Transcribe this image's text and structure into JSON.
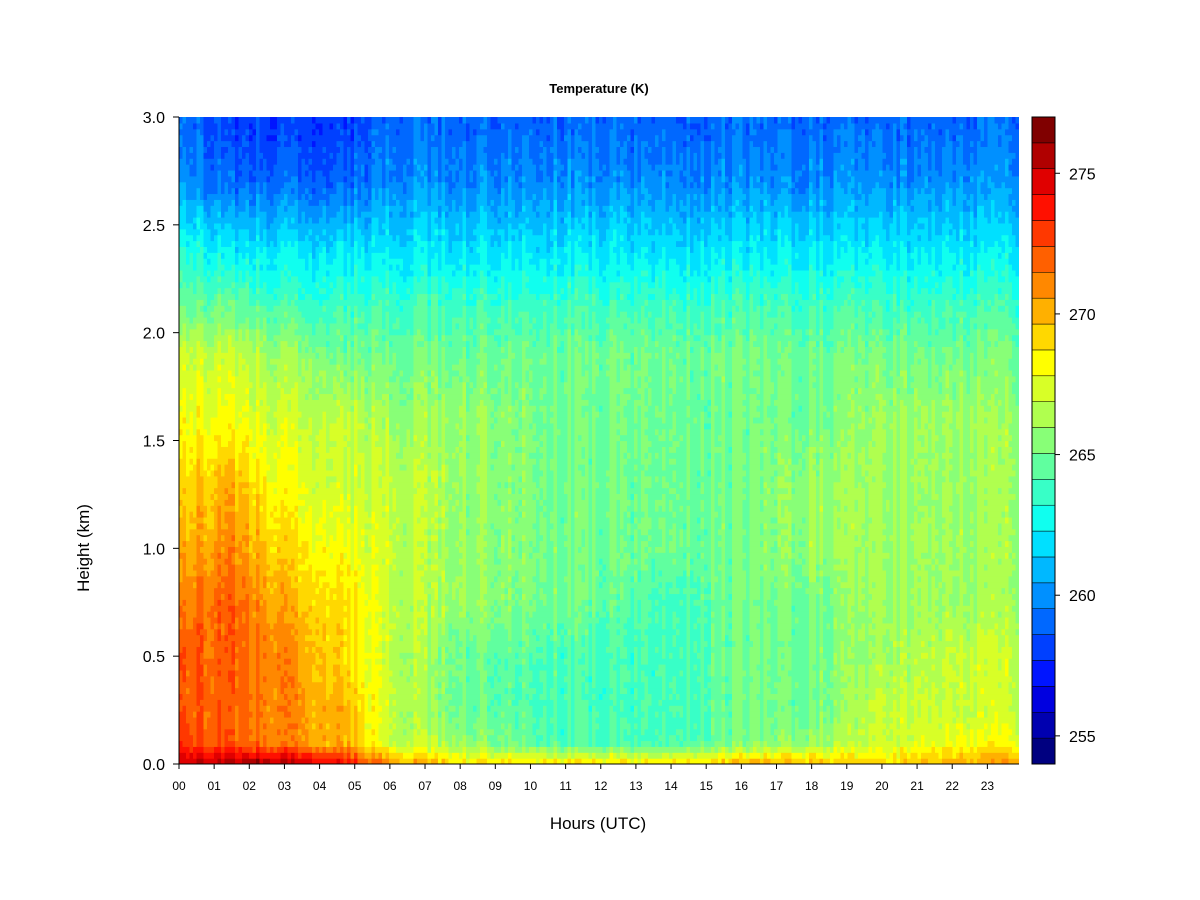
{
  "chart_data": {
    "type": "heatmap",
    "title": "Temperature (K)",
    "xlabel": "Hours (UTC)",
    "ylabel": "Height (km)",
    "xlim": [
      0,
      23.9
    ],
    "ylim": [
      0,
      3.0
    ],
    "x_ticks": [
      "00",
      "01",
      "02",
      "03",
      "04",
      "05",
      "06",
      "07",
      "08",
      "09",
      "10",
      "11",
      "12",
      "13",
      "14",
      "15",
      "16",
      "17",
      "18",
      "19",
      "20",
      "21",
      "22",
      "23"
    ],
    "y_ticks": [
      "0.0",
      "0.5",
      "1.0",
      "1.5",
      "2.0",
      "2.5",
      "3.0"
    ],
    "colorbar": {
      "min": 254,
      "max": 277,
      "step": 1,
      "ticks": [
        "255",
        "260",
        "265",
        "270",
        "275"
      ],
      "colors": [
        "#000080",
        "#0000B0",
        "#0000E0",
        "#0015FF",
        "#0040FF",
        "#0068FF",
        "#0090FF",
        "#00B8FF",
        "#00E0FF",
        "#10FFEF",
        "#38FFC7",
        "#60FF9F",
        "#88FF77",
        "#B0FF4F",
        "#D8FF27",
        "#FFFF00",
        "#FFD800",
        "#FFB000",
        "#FF8800",
        "#FF6000",
        "#FF3800",
        "#FF1000",
        "#E00000",
        "#B00000",
        "#800000"
      ]
    },
    "profiles": [
      {
        "hour": 0,
        "temps_k": [
          275,
          273,
          272,
          272,
          271,
          270,
          269,
          268,
          267,
          265,
          263,
          260,
          259
        ]
      },
      {
        "hour": 1.5,
        "temps_k": [
          276,
          272,
          272,
          272,
          272,
          271,
          270,
          268,
          267,
          265,
          262,
          259,
          258
        ]
      },
      {
        "hour": 3,
        "temps_k": [
          276,
          271,
          271,
          271,
          270,
          269,
          268,
          267,
          266,
          264,
          262,
          259,
          258
        ]
      },
      {
        "hour": 4.8,
        "temps_k": [
          274,
          270,
          270,
          269,
          269,
          268,
          267,
          267,
          265,
          264,
          262,
          259,
          258
        ]
      },
      {
        "hour": 6,
        "temps_k": [
          271,
          267,
          267,
          267,
          267,
          267,
          267,
          266,
          265,
          264,
          262,
          260,
          259
        ]
      },
      {
        "hour": 8,
        "temps_k": [
          269,
          266,
          265,
          265,
          266,
          266,
          266,
          266,
          265,
          264,
          262,
          260,
          259
        ]
      },
      {
        "hour": 11,
        "temps_k": [
          269,
          264,
          264,
          264,
          265,
          265,
          265,
          265,
          265,
          264,
          262,
          260,
          259
        ]
      },
      {
        "hour": 14,
        "temps_k": [
          269,
          264,
          264,
          264,
          264,
          265,
          265,
          265,
          265,
          264,
          262,
          260,
          259
        ]
      },
      {
        "hour": 16,
        "temps_k": [
          270,
          265,
          265,
          265,
          265,
          265,
          265,
          265,
          265,
          264,
          262,
          260,
          259
        ]
      },
      {
        "hour": 18,
        "temps_k": [
          270,
          266,
          265,
          265,
          265,
          266,
          266,
          265,
          265,
          264,
          262,
          260,
          259
        ]
      },
      {
        "hour": 20,
        "temps_k": [
          269,
          267,
          267,
          266,
          266,
          266,
          266,
          266,
          265,
          264,
          262,
          260,
          259
        ]
      },
      {
        "hour": 22,
        "temps_k": [
          270,
          268,
          267,
          267,
          266,
          266,
          266,
          266,
          265,
          264,
          262,
          260,
          259
        ]
      },
      {
        "hour": 23.9,
        "temps_k": [
          271,
          268,
          267,
          267,
          266,
          266,
          266,
          266,
          265,
          264,
          262,
          260,
          259
        ]
      }
    ],
    "profile_heights_km": [
      0.0,
      0.1,
      0.25,
      0.5,
      0.75,
      1.0,
      1.3,
      1.6,
      1.9,
      2.1,
      2.4,
      2.7,
      3.0
    ],
    "grid": false,
    "legend": "colorbar right"
  }
}
